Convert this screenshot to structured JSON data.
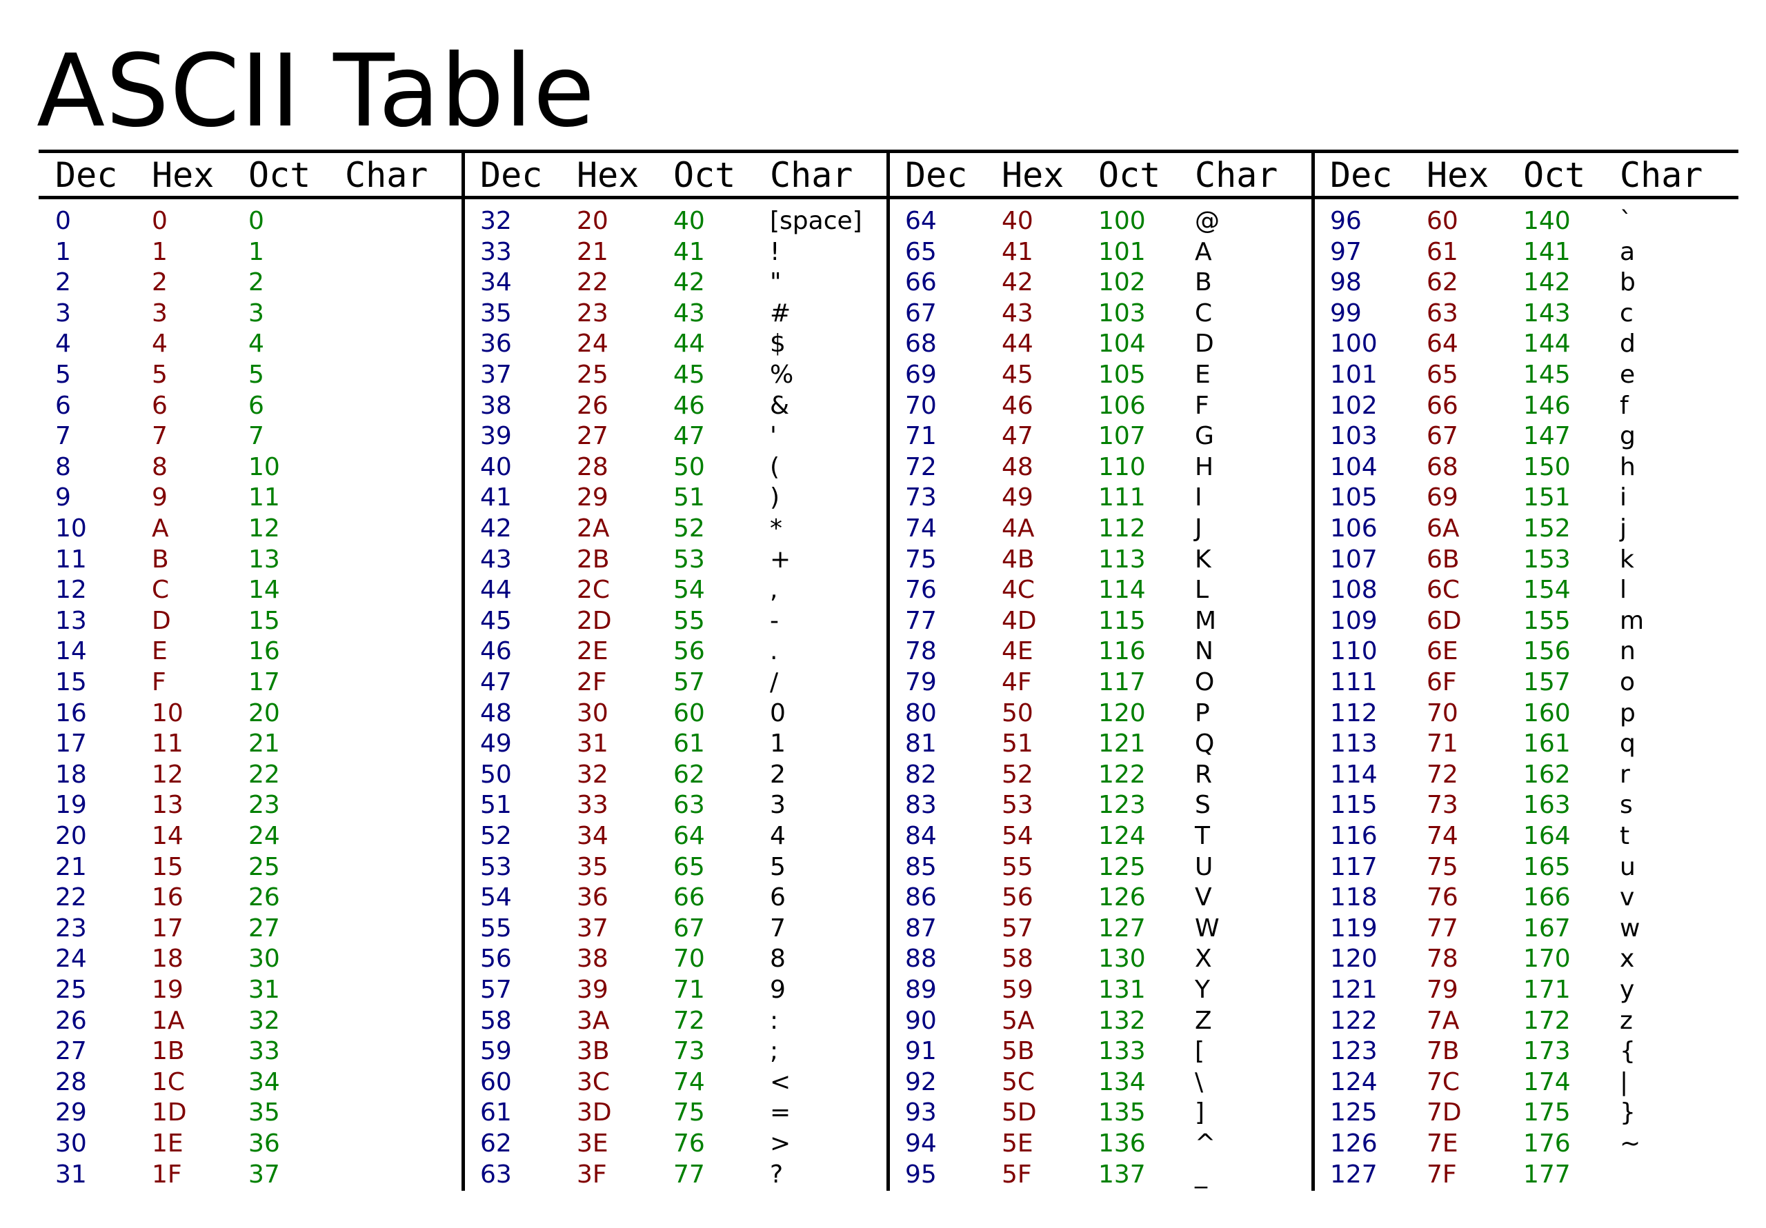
{
  "title": "ASCII Table",
  "headers": [
    "Dec",
    "Hex",
    "Oct",
    "Char"
  ],
  "colors": {
    "dec": "#000080",
    "hex": "#800000",
    "oct": "#008000",
    "char": "#000000",
    "rule": "#000000"
  },
  "rows": [
    {
      "dec": "0",
      "hex": "0",
      "oct": "0",
      "char": ""
    },
    {
      "dec": "1",
      "hex": "1",
      "oct": "1",
      "char": ""
    },
    {
      "dec": "2",
      "hex": "2",
      "oct": "2",
      "char": ""
    },
    {
      "dec": "3",
      "hex": "3",
      "oct": "3",
      "char": ""
    },
    {
      "dec": "4",
      "hex": "4",
      "oct": "4",
      "char": ""
    },
    {
      "dec": "5",
      "hex": "5",
      "oct": "5",
      "char": ""
    },
    {
      "dec": "6",
      "hex": "6",
      "oct": "6",
      "char": ""
    },
    {
      "dec": "7",
      "hex": "7",
      "oct": "7",
      "char": ""
    },
    {
      "dec": "8",
      "hex": "8",
      "oct": "10",
      "char": ""
    },
    {
      "dec": "9",
      "hex": "9",
      "oct": "11",
      "char": ""
    },
    {
      "dec": "10",
      "hex": "A",
      "oct": "12",
      "char": ""
    },
    {
      "dec": "11",
      "hex": "B",
      "oct": "13",
      "char": ""
    },
    {
      "dec": "12",
      "hex": "C",
      "oct": "14",
      "char": ""
    },
    {
      "dec": "13",
      "hex": "D",
      "oct": "15",
      "char": ""
    },
    {
      "dec": "14",
      "hex": "E",
      "oct": "16",
      "char": ""
    },
    {
      "dec": "15",
      "hex": "F",
      "oct": "17",
      "char": ""
    },
    {
      "dec": "16",
      "hex": "10",
      "oct": "20",
      "char": ""
    },
    {
      "dec": "17",
      "hex": "11",
      "oct": "21",
      "char": ""
    },
    {
      "dec": "18",
      "hex": "12",
      "oct": "22",
      "char": ""
    },
    {
      "dec": "19",
      "hex": "13",
      "oct": "23",
      "char": ""
    },
    {
      "dec": "20",
      "hex": "14",
      "oct": "24",
      "char": ""
    },
    {
      "dec": "21",
      "hex": "15",
      "oct": "25",
      "char": ""
    },
    {
      "dec": "22",
      "hex": "16",
      "oct": "26",
      "char": ""
    },
    {
      "dec": "23",
      "hex": "17",
      "oct": "27",
      "char": ""
    },
    {
      "dec": "24",
      "hex": "18",
      "oct": "30",
      "char": ""
    },
    {
      "dec": "25",
      "hex": "19",
      "oct": "31",
      "char": ""
    },
    {
      "dec": "26",
      "hex": "1A",
      "oct": "32",
      "char": ""
    },
    {
      "dec": "27",
      "hex": "1B",
      "oct": "33",
      "char": ""
    },
    {
      "dec": "28",
      "hex": "1C",
      "oct": "34",
      "char": ""
    },
    {
      "dec": "29",
      "hex": "1D",
      "oct": "35",
      "char": ""
    },
    {
      "dec": "30",
      "hex": "1E",
      "oct": "36",
      "char": ""
    },
    {
      "dec": "31",
      "hex": "1F",
      "oct": "37",
      "char": ""
    },
    {
      "dec": "32",
      "hex": "20",
      "oct": "40",
      "char": "[space]"
    },
    {
      "dec": "33",
      "hex": "21",
      "oct": "41",
      "char": "!"
    },
    {
      "dec": "34",
      "hex": "22",
      "oct": "42",
      "char": "\""
    },
    {
      "dec": "35",
      "hex": "23",
      "oct": "43",
      "char": "#"
    },
    {
      "dec": "36",
      "hex": "24",
      "oct": "44",
      "char": "$"
    },
    {
      "dec": "37",
      "hex": "25",
      "oct": "45",
      "char": "%"
    },
    {
      "dec": "38",
      "hex": "26",
      "oct": "46",
      "char": "&"
    },
    {
      "dec": "39",
      "hex": "27",
      "oct": "47",
      "char": "'"
    },
    {
      "dec": "40",
      "hex": "28",
      "oct": "50",
      "char": "("
    },
    {
      "dec": "41",
      "hex": "29",
      "oct": "51",
      "char": ")"
    },
    {
      "dec": "42",
      "hex": "2A",
      "oct": "52",
      "char": "*"
    },
    {
      "dec": "43",
      "hex": "2B",
      "oct": "53",
      "char": "+"
    },
    {
      "dec": "44",
      "hex": "2C",
      "oct": "54",
      "char": ","
    },
    {
      "dec": "45",
      "hex": "2D",
      "oct": "55",
      "char": "-"
    },
    {
      "dec": "46",
      "hex": "2E",
      "oct": "56",
      "char": "."
    },
    {
      "dec": "47",
      "hex": "2F",
      "oct": "57",
      "char": "/"
    },
    {
      "dec": "48",
      "hex": "30",
      "oct": "60",
      "char": "0"
    },
    {
      "dec": "49",
      "hex": "31",
      "oct": "61",
      "char": "1"
    },
    {
      "dec": "50",
      "hex": "32",
      "oct": "62",
      "char": "2"
    },
    {
      "dec": "51",
      "hex": "33",
      "oct": "63",
      "char": "3"
    },
    {
      "dec": "52",
      "hex": "34",
      "oct": "64",
      "char": "4"
    },
    {
      "dec": "53",
      "hex": "35",
      "oct": "65",
      "char": "5"
    },
    {
      "dec": "54",
      "hex": "36",
      "oct": "66",
      "char": "6"
    },
    {
      "dec": "55",
      "hex": "37",
      "oct": "67",
      "char": "7"
    },
    {
      "dec": "56",
      "hex": "38",
      "oct": "70",
      "char": "8"
    },
    {
      "dec": "57",
      "hex": "39",
      "oct": "71",
      "char": "9"
    },
    {
      "dec": "58",
      "hex": "3A",
      "oct": "72",
      "char": ":"
    },
    {
      "dec": "59",
      "hex": "3B",
      "oct": "73",
      "char": ";"
    },
    {
      "dec": "60",
      "hex": "3C",
      "oct": "74",
      "char": "<"
    },
    {
      "dec": "61",
      "hex": "3D",
      "oct": "75",
      "char": "="
    },
    {
      "dec": "62",
      "hex": "3E",
      "oct": "76",
      "char": ">"
    },
    {
      "dec": "63",
      "hex": "3F",
      "oct": "77",
      "char": "?"
    },
    {
      "dec": "64",
      "hex": "40",
      "oct": "100",
      "char": "@"
    },
    {
      "dec": "65",
      "hex": "41",
      "oct": "101",
      "char": "A"
    },
    {
      "dec": "66",
      "hex": "42",
      "oct": "102",
      "char": "B"
    },
    {
      "dec": "67",
      "hex": "43",
      "oct": "103",
      "char": "C"
    },
    {
      "dec": "68",
      "hex": "44",
      "oct": "104",
      "char": "D"
    },
    {
      "dec": "69",
      "hex": "45",
      "oct": "105",
      "char": "E"
    },
    {
      "dec": "70",
      "hex": "46",
      "oct": "106",
      "char": "F"
    },
    {
      "dec": "71",
      "hex": "47",
      "oct": "107",
      "char": "G"
    },
    {
      "dec": "72",
      "hex": "48",
      "oct": "110",
      "char": "H"
    },
    {
      "dec": "73",
      "hex": "49",
      "oct": "111",
      "char": "I"
    },
    {
      "dec": "74",
      "hex": "4A",
      "oct": "112",
      "char": "J"
    },
    {
      "dec": "75",
      "hex": "4B",
      "oct": "113",
      "char": "K"
    },
    {
      "dec": "76",
      "hex": "4C",
      "oct": "114",
      "char": "L"
    },
    {
      "dec": "77",
      "hex": "4D",
      "oct": "115",
      "char": "M"
    },
    {
      "dec": "78",
      "hex": "4E",
      "oct": "116",
      "char": "N"
    },
    {
      "dec": "79",
      "hex": "4F",
      "oct": "117",
      "char": "O"
    },
    {
      "dec": "80",
      "hex": "50",
      "oct": "120",
      "char": "P"
    },
    {
      "dec": "81",
      "hex": "51",
      "oct": "121",
      "char": "Q"
    },
    {
      "dec": "82",
      "hex": "52",
      "oct": "122",
      "char": "R"
    },
    {
      "dec": "83",
      "hex": "53",
      "oct": "123",
      "char": "S"
    },
    {
      "dec": "84",
      "hex": "54",
      "oct": "124",
      "char": "T"
    },
    {
      "dec": "85",
      "hex": "55",
      "oct": "125",
      "char": "U"
    },
    {
      "dec": "86",
      "hex": "56",
      "oct": "126",
      "char": "V"
    },
    {
      "dec": "87",
      "hex": "57",
      "oct": "127",
      "char": "W"
    },
    {
      "dec": "88",
      "hex": "58",
      "oct": "130",
      "char": "X"
    },
    {
      "dec": "89",
      "hex": "59",
      "oct": "131",
      "char": "Y"
    },
    {
      "dec": "90",
      "hex": "5A",
      "oct": "132",
      "char": "Z"
    },
    {
      "dec": "91",
      "hex": "5B",
      "oct": "133",
      "char": "["
    },
    {
      "dec": "92",
      "hex": "5C",
      "oct": "134",
      "char": "\\"
    },
    {
      "dec": "93",
      "hex": "5D",
      "oct": "135",
      "char": "]"
    },
    {
      "dec": "94",
      "hex": "5E",
      "oct": "136",
      "char": "^"
    },
    {
      "dec": "95",
      "hex": "5F",
      "oct": "137",
      "char": "_"
    },
    {
      "dec": "96",
      "hex": "60",
      "oct": "140",
      "char": "`"
    },
    {
      "dec": "97",
      "hex": "61",
      "oct": "141",
      "char": "a"
    },
    {
      "dec": "98",
      "hex": "62",
      "oct": "142",
      "char": "b"
    },
    {
      "dec": "99",
      "hex": "63",
      "oct": "143",
      "char": "c"
    },
    {
      "dec": "100",
      "hex": "64",
      "oct": "144",
      "char": "d"
    },
    {
      "dec": "101",
      "hex": "65",
      "oct": "145",
      "char": "e"
    },
    {
      "dec": "102",
      "hex": "66",
      "oct": "146",
      "char": "f"
    },
    {
      "dec": "103",
      "hex": "67",
      "oct": "147",
      "char": "g"
    },
    {
      "dec": "104",
      "hex": "68",
      "oct": "150",
      "char": "h"
    },
    {
      "dec": "105",
      "hex": "69",
      "oct": "151",
      "char": "i"
    },
    {
      "dec": "106",
      "hex": "6A",
      "oct": "152",
      "char": "j"
    },
    {
      "dec": "107",
      "hex": "6B",
      "oct": "153",
      "char": "k"
    },
    {
      "dec": "108",
      "hex": "6C",
      "oct": "154",
      "char": "l"
    },
    {
      "dec": "109",
      "hex": "6D",
      "oct": "155",
      "char": "m"
    },
    {
      "dec": "110",
      "hex": "6E",
      "oct": "156",
      "char": "n"
    },
    {
      "dec": "111",
      "hex": "6F",
      "oct": "157",
      "char": "o"
    },
    {
      "dec": "112",
      "hex": "70",
      "oct": "160",
      "char": "p"
    },
    {
      "dec": "113",
      "hex": "71",
      "oct": "161",
      "char": "q"
    },
    {
      "dec": "114",
      "hex": "72",
      "oct": "162",
      "char": "r"
    },
    {
      "dec": "115",
      "hex": "73",
      "oct": "163",
      "char": "s"
    },
    {
      "dec": "116",
      "hex": "74",
      "oct": "164",
      "char": "t"
    },
    {
      "dec": "117",
      "hex": "75",
      "oct": "165",
      "char": "u"
    },
    {
      "dec": "118",
      "hex": "76",
      "oct": "166",
      "char": "v"
    },
    {
      "dec": "119",
      "hex": "77",
      "oct": "167",
      "char": "w"
    },
    {
      "dec": "120",
      "hex": "78",
      "oct": "170",
      "char": "x"
    },
    {
      "dec": "121",
      "hex": "79",
      "oct": "171",
      "char": "y"
    },
    {
      "dec": "122",
      "hex": "7A",
      "oct": "172",
      "char": "z"
    },
    {
      "dec": "123",
      "hex": "7B",
      "oct": "173",
      "char": "{"
    },
    {
      "dec": "124",
      "hex": "7C",
      "oct": "174",
      "char": "|"
    },
    {
      "dec": "125",
      "hex": "7D",
      "oct": "175",
      "char": "}"
    },
    {
      "dec": "126",
      "hex": "7E",
      "oct": "176",
      "char": "~"
    },
    {
      "dec": "127",
      "hex": "7F",
      "oct": "177",
      "char": ""
    }
  ]
}
